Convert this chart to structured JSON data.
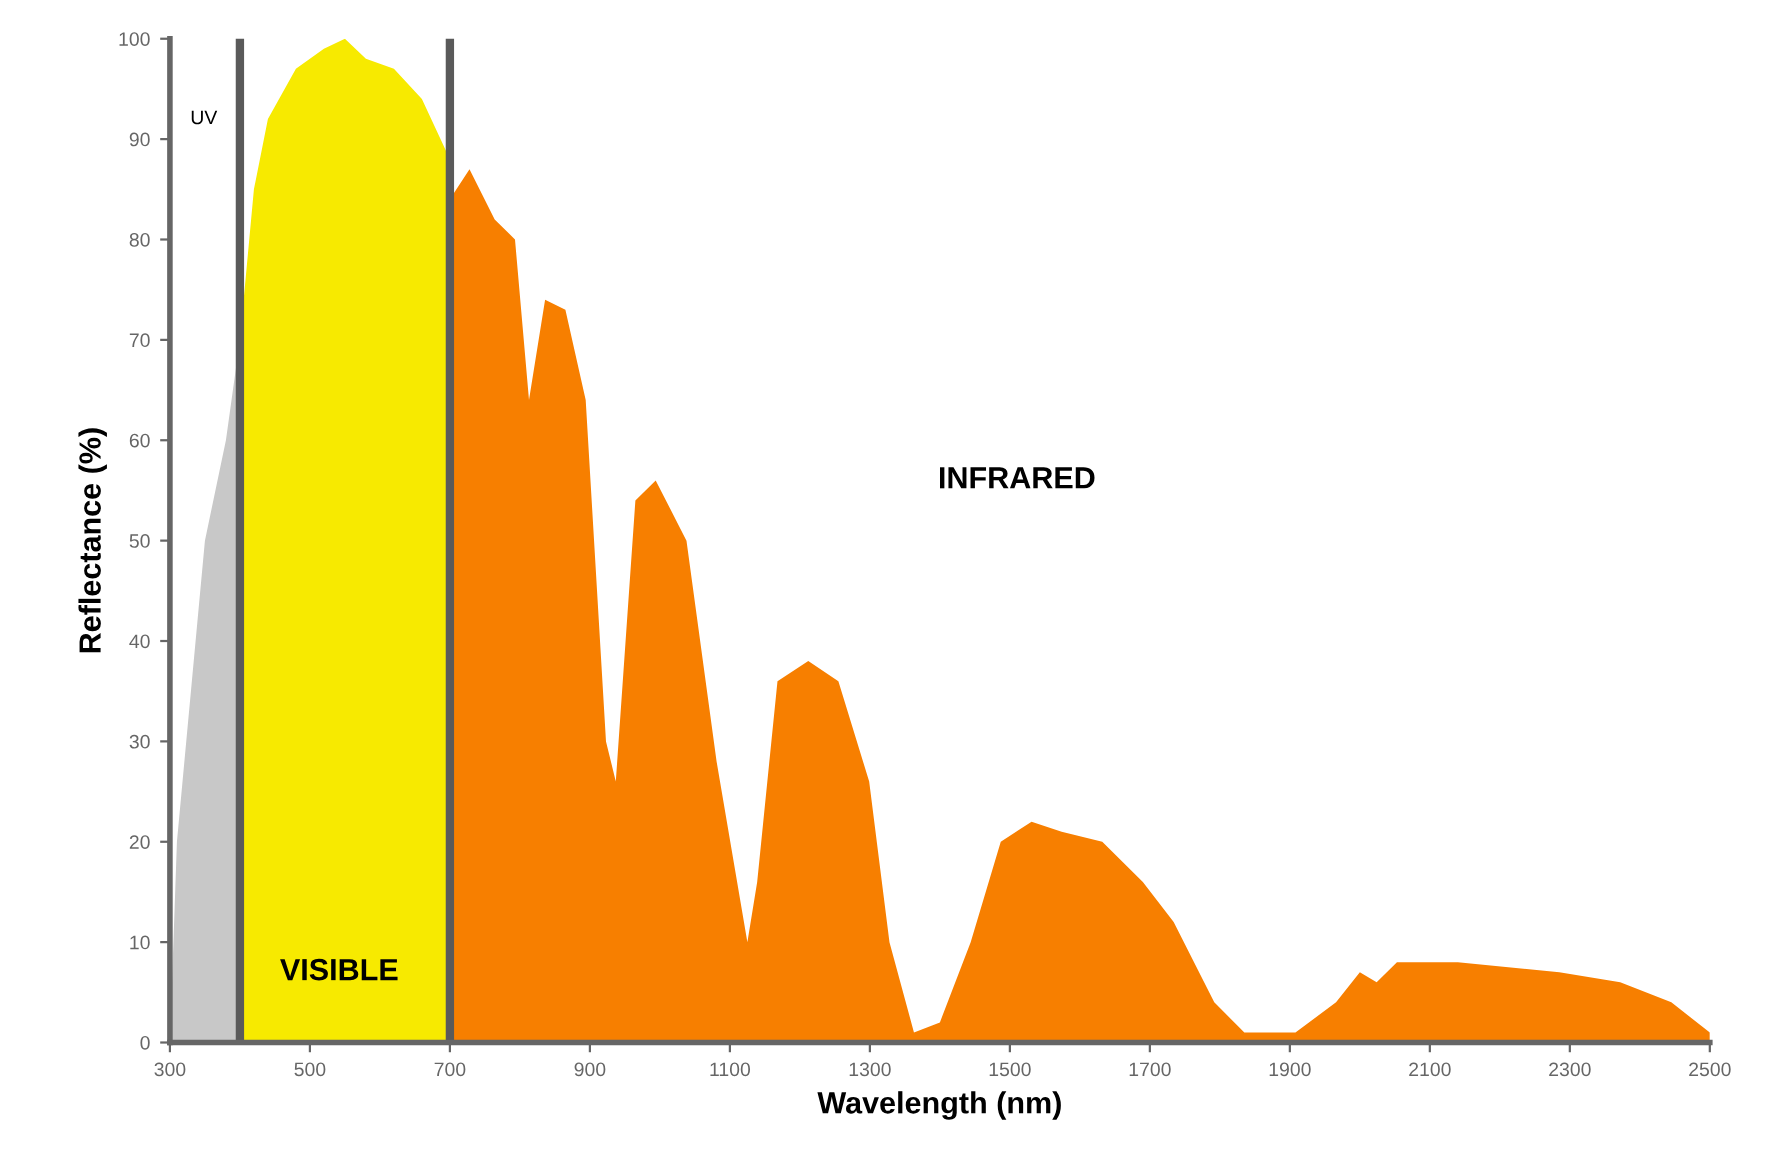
{
  "chart_data": {
    "type": "area",
    "xlabel": "Wavelength (nm)",
    "ylabel": "Reflectance (%)",
    "series": [
      {
        "color": "#c8c8c8",
        "x": [
          300,
          310,
          330,
          350,
          380,
          400
        ],
        "values": [
          0,
          20,
          35,
          50,
          60,
          70
        ]
      },
      {
        "color": "#f7ea00",
        "x": [
          400,
          420,
          440,
          480,
          520,
          550,
          580,
          620,
          660,
          700
        ],
        "values": [
          70,
          85,
          92,
          97,
          99,
          100,
          98,
          97,
          94,
          88
        ]
      },
      {
        "color": "#f77f00",
        "x": [
          700,
          728,
          764,
          793,
          813,
          836,
          865,
          894,
          923,
          937,
          965,
          994,
          1038,
          1081,
          1125,
          1139,
          1168,
          1212,
          1255,
          1299,
          1328,
          1363,
          1400,
          1444,
          1487,
          1531,
          1574,
          1632,
          1690,
          1734,
          1792,
          1835,
          1908,
          1966,
          2000,
          2024,
          2053,
          2140,
          2285,
          2372,
          2445,
          2500
        ],
        "values": [
          84,
          87,
          82,
          80,
          64,
          74,
          73,
          64,
          30,
          26,
          54,
          56,
          50,
          28,
          10,
          16,
          36,
          38,
          36,
          26,
          10,
          1,
          2,
          10,
          20,
          22,
          21,
          20,
          16,
          12,
          4,
          1,
          1,
          4,
          7,
          6,
          8,
          8,
          7,
          6,
          4,
          1
        ]
      }
    ],
    "ref_lines": [
      {
        "axis": "x",
        "value": 400,
        "color": "#5a5a5a"
      },
      {
        "axis": "x",
        "value": 700,
        "color": "#5a5a5a"
      }
    ],
    "annotations": [
      "UV",
      "VISIBLE",
      "INFRARED"
    ],
    "xlim": [
      300,
      2500
    ],
    "xticks": [
      300,
      500,
      700,
      900,
      1100,
      1300,
      1500,
      1700,
      1900,
      2100,
      2300,
      2500
    ],
    "ylim": [
      0,
      100
    ],
    "yticks": [
      0,
      10,
      20,
      30,
      40,
      50,
      60,
      70,
      80,
      90,
      100
    ],
    "grid": false,
    "legend": false
  }
}
